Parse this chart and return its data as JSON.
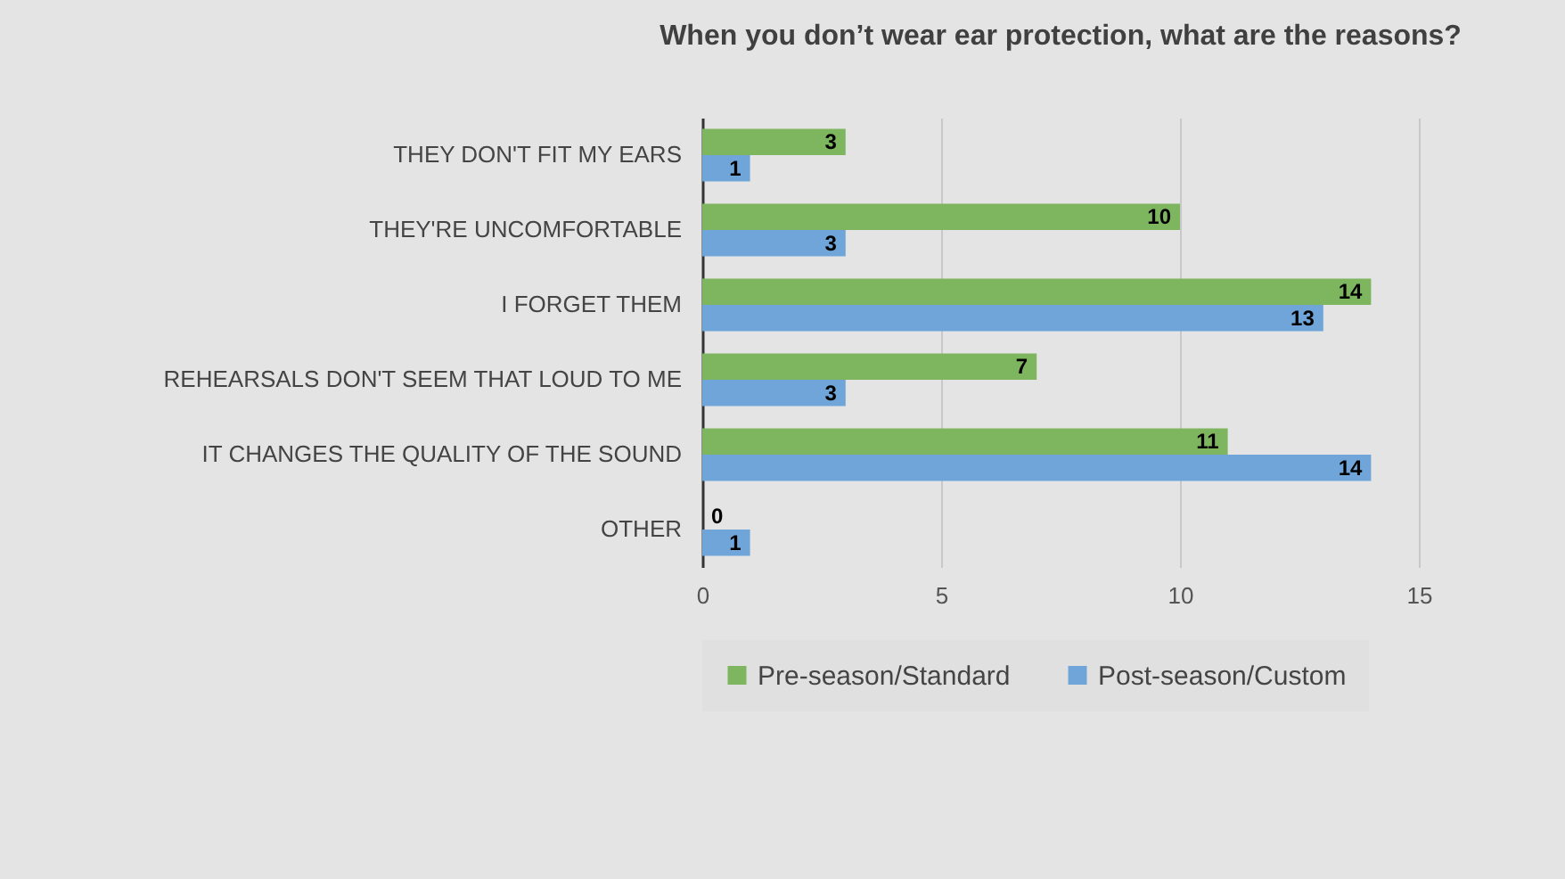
{
  "chart_data": {
    "type": "bar",
    "orientation": "horizontal",
    "title": "When you don’t wear ear protection, what are the reasons?",
    "categories": [
      "THEY DON'T FIT MY EARS",
      "THEY'RE UNCOMFORTABLE",
      "I FORGET THEM",
      "REHEARSALS DON'T SEEM THAT LOUD TO ME",
      "IT CHANGES THE QUALITY OF THE SOUND",
      "OTHER"
    ],
    "series": [
      {
        "name": "Pre-season/Standard",
        "color": "#7eb65f",
        "values": [
          3,
          10,
          14,
          7,
          11,
          0
        ]
      },
      {
        "name": "Post-season/Custom",
        "color": "#6fa5d9",
        "values": [
          1,
          3,
          13,
          3,
          14,
          1
        ]
      }
    ],
    "xlim": [
      0,
      15
    ],
    "xticks": [
      0,
      5,
      10,
      15
    ],
    "grid": "x",
    "legend": "bottom",
    "data_labels": true
  }
}
